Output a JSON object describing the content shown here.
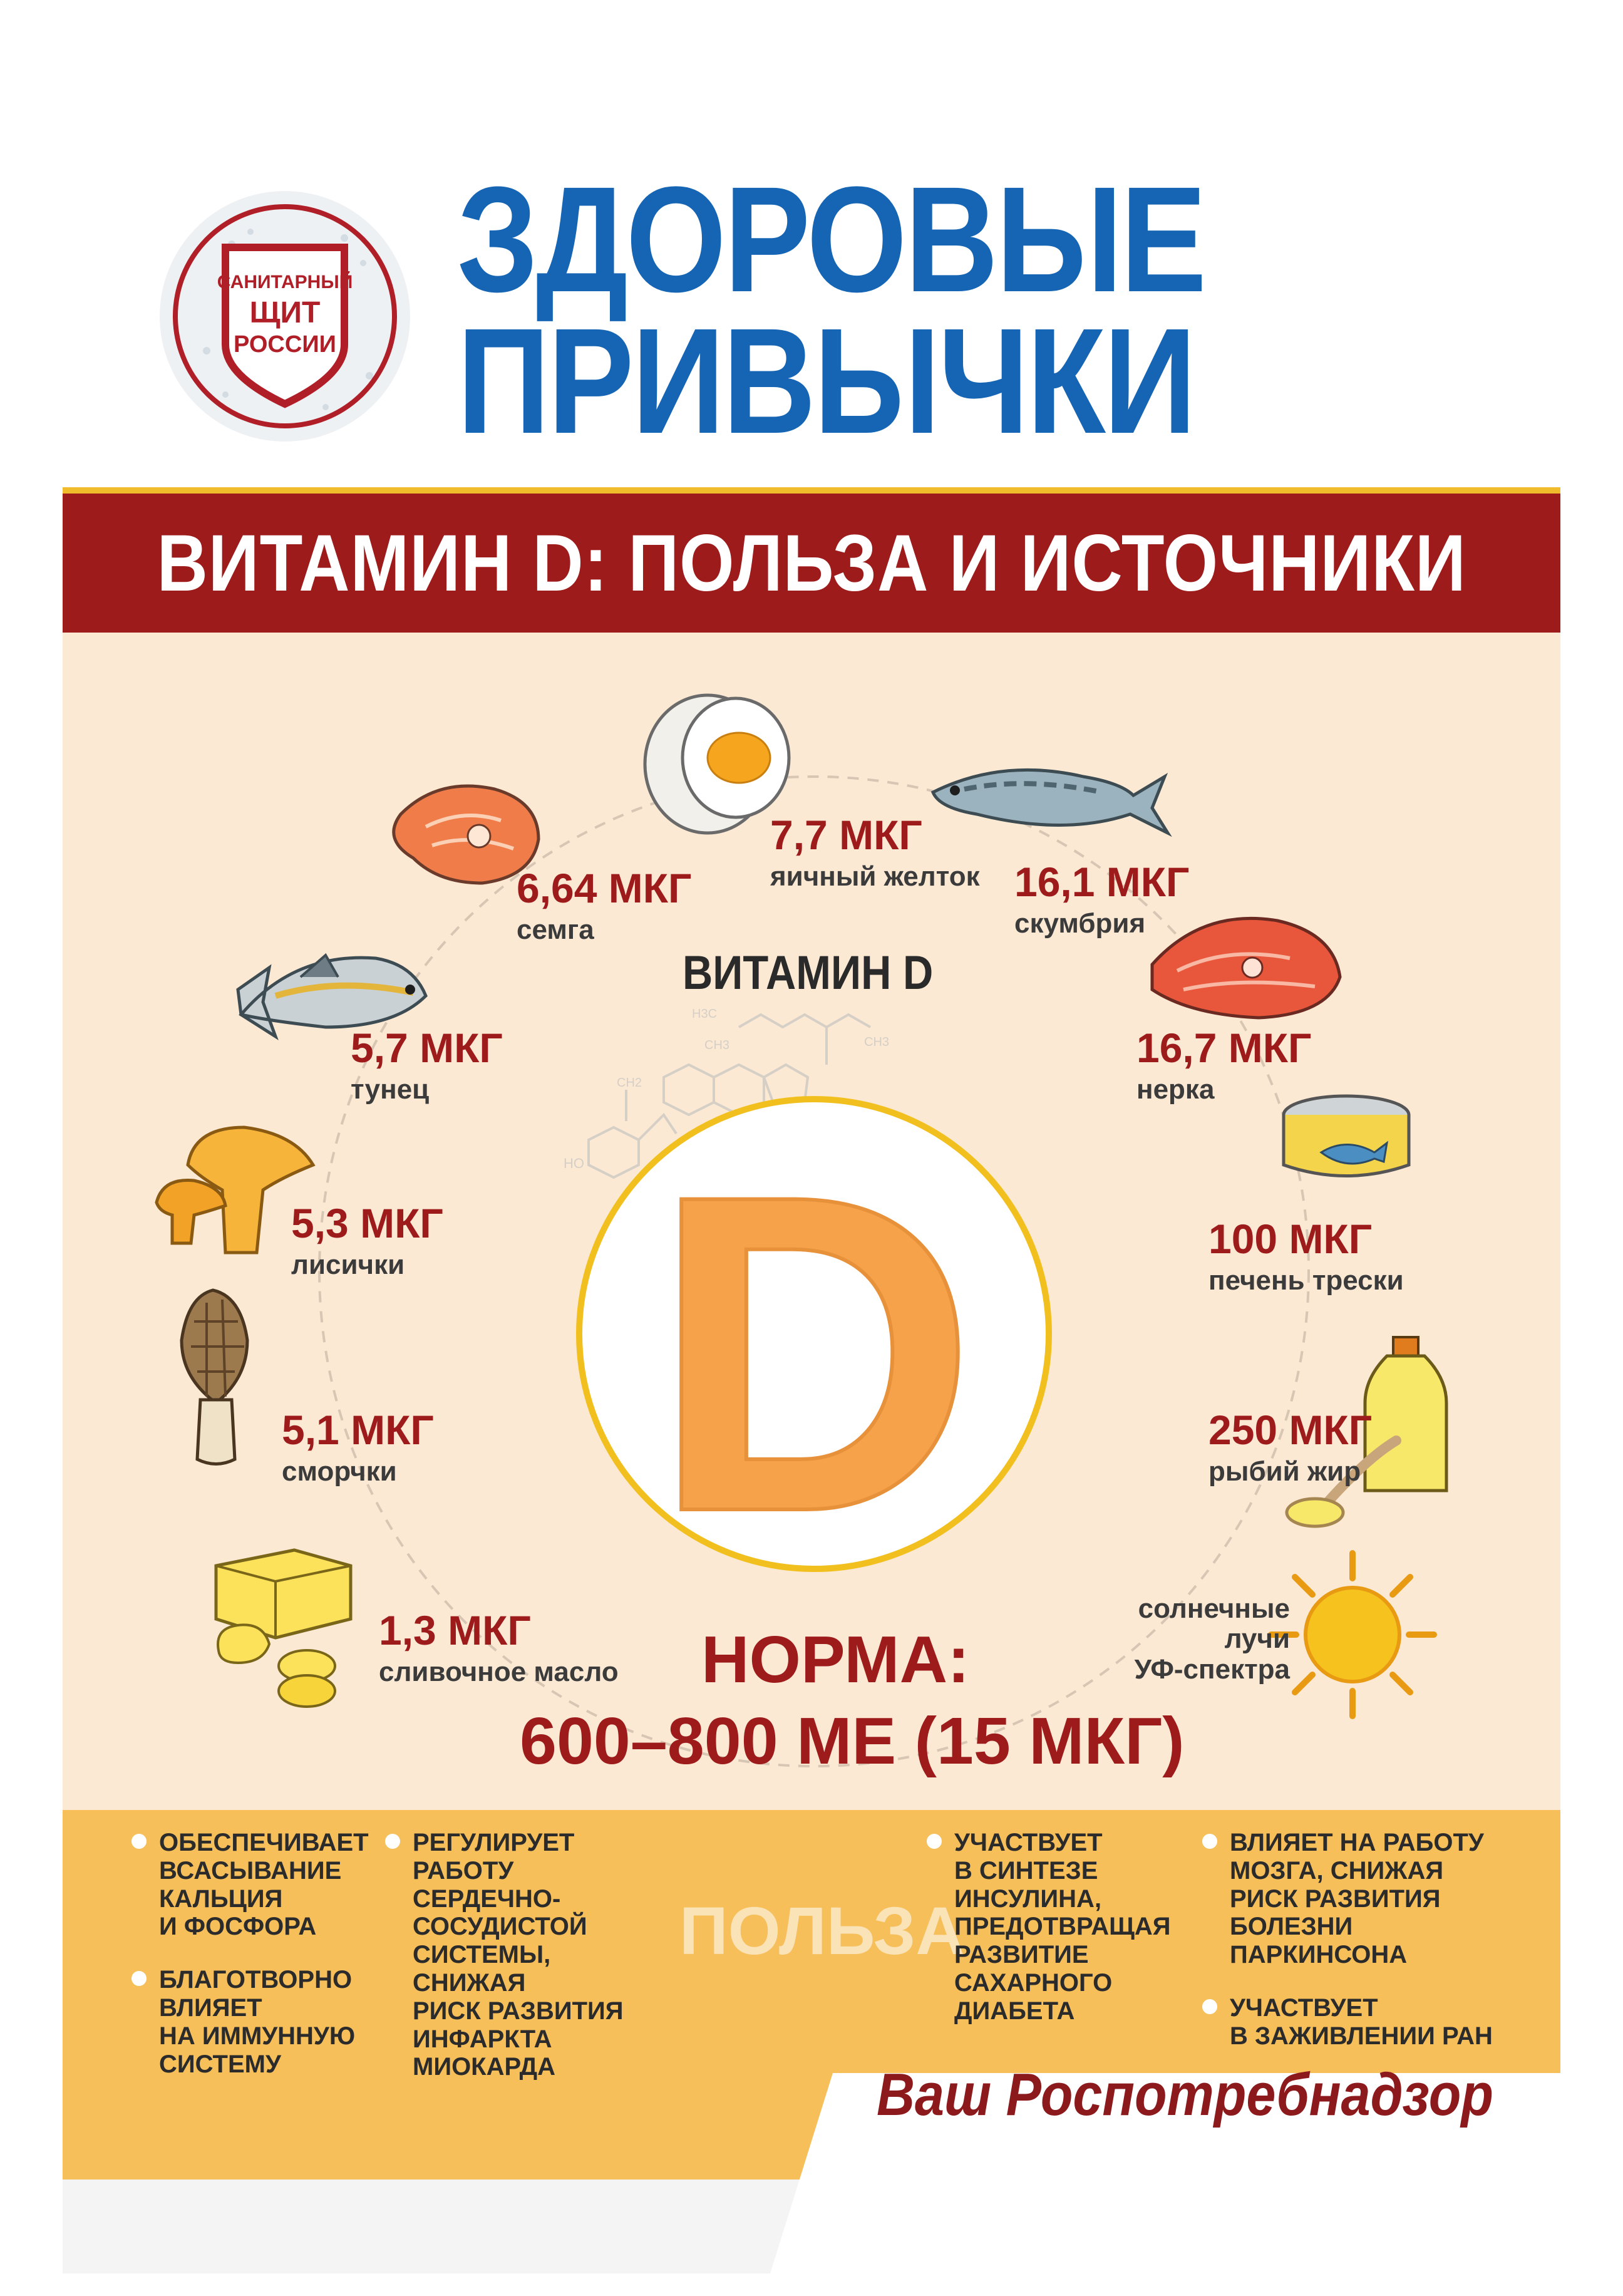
{
  "header": {
    "logo_lines": [
      "САНИТАРНЫЙ",
      "ЩИТ",
      "РОССИИ"
    ],
    "title_line1": "ЗДОРОВЫЕ",
    "title_line2": "ПРИВЫЧКИ"
  },
  "banner": {
    "text": "ВИТАМИН D: ПОЛЬЗА И ИСТОЧНИКИ"
  },
  "center": {
    "heading": "ВИТАМИН D",
    "letter": "D",
    "norma_label": "НОРМА:",
    "norma_value": "600–800 МЕ (15 МКГ)",
    "formula_labels": [
      "H3C",
      "CH3",
      "CH3",
      "CH2",
      "HO"
    ]
  },
  "foods": [
    {
      "amount": "7,7 МКГ",
      "name": "яичный желток",
      "icon": "egg-icon"
    },
    {
      "amount": "6,64 МКГ",
      "name": "семга",
      "icon": "salmon-steak-icon"
    },
    {
      "amount": "16,1 МКГ",
      "name": "скумбрия",
      "icon": "mackerel-icon"
    },
    {
      "amount": "5,7 МКГ",
      "name": "тунец",
      "icon": "tuna-icon"
    },
    {
      "amount": "16,7 МКГ",
      "name": "нерка",
      "icon": "red-fish-steak-icon"
    },
    {
      "amount": "5,3 МКГ",
      "name": "лисички",
      "icon": "chanterelle-icon"
    },
    {
      "amount": "100 МКГ",
      "name": "печень трески",
      "icon": "tin-can-icon"
    },
    {
      "amount": "5,1 МКГ",
      "name": "сморчки",
      "icon": "morel-icon"
    },
    {
      "amount": "250 МКГ",
      "name": "рыбий жир",
      "icon": "fish-oil-bottle-icon"
    },
    {
      "amount": "1,3 МКГ",
      "name": "сливочное масло",
      "icon": "butter-icon"
    }
  ],
  "sun": {
    "lines": [
      "солнечные",
      "лучи",
      "УФ-спектра"
    ],
    "icon": "sun-icon"
  },
  "benefits": {
    "title": "ПОЛЬЗА",
    "col1": [
      "ОБЕСПЕЧИВАЕТ\nВСАСЫВАНИЕ\nКАЛЬЦИЯ\nИ ФОСФОРА",
      "БЛАГОТВОРНО\nВЛИЯЕТ\nНА ИММУННУЮ\nСИСТЕМУ"
    ],
    "col2": [
      "РЕГУЛИРУЕТ\nРАБОТУ СЕРДЕЧНО-\nСОСУДИСТОЙ\nСИСТЕМЫ, СНИЖАЯ\nРИСК РАЗВИТИЯ\nИНФАРКТА\nМИОКАРДА"
    ],
    "col3": [
      "УЧАСТВУЕТ\nВ СИНТЕЗЕ\nИНСУЛИНА,\nПРЕДОТВРАЩАЯ\nРАЗВИТИЕ\nСАХАРНОГО ДИАБЕТА"
    ],
    "col4": [
      "ВЛИЯЕТ НА РАБОТУ\nМОЗГА, СНИЖАЯ\nРИСК РАЗВИТИЯ\nБОЛЕЗНИ ПАРКИНСОНА",
      "УЧАСТВУЕТ\nВ ЗАЖИВЛЕНИИ РАН"
    ]
  },
  "footer": {
    "signature": "Ваш Роспотребнадзор"
  },
  "colors": {
    "title_blue": "#1565b4",
    "banner_red": "#9e1b1c",
    "panel_beige": "#fbe9d4",
    "benefit_gold": "#f6bf5a",
    "d_orange": "#f5a24a"
  }
}
